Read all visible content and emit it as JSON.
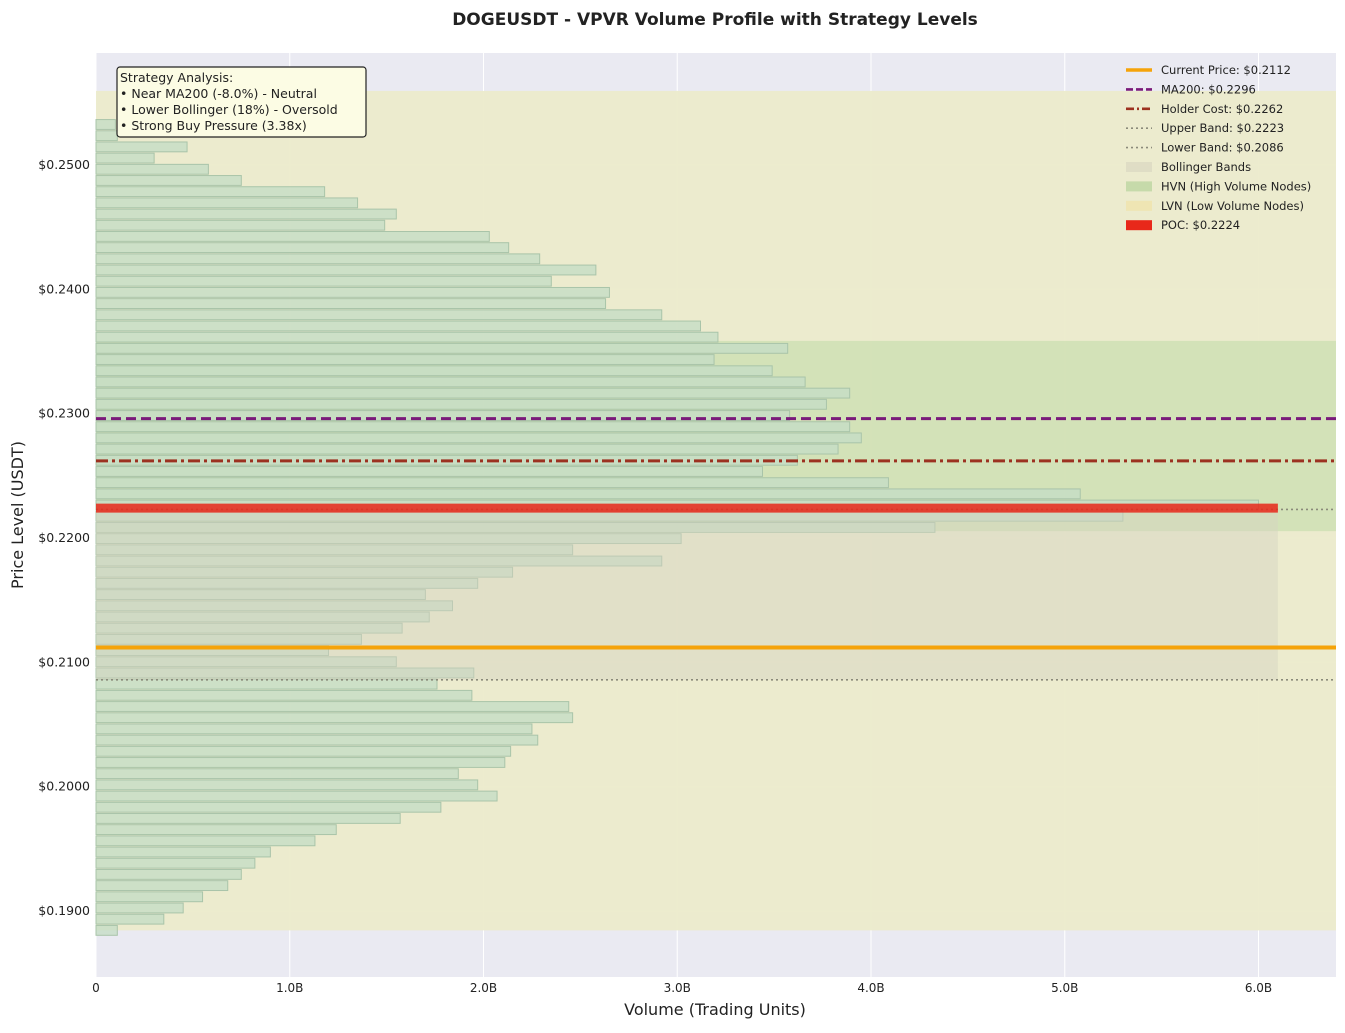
{
  "chart_data": {
    "type": "bar",
    "orientation": "horizontal",
    "title": "DOGEUSDT - VPVR Volume Profile with Strategy Levels",
    "xlabel": "Volume (Trading Units)",
    "ylabel": "Price Level (USDT)",
    "xlim": [
      0,
      6.4
    ],
    "ylim": [
      0.1847,
      0.259
    ],
    "x_unit": "B (billions)",
    "grid": true,
    "legend_position": "top-right",
    "xticks": [
      {
        "value": 0,
        "label": "0"
      },
      {
        "value": 1,
        "label": "1.0B"
      },
      {
        "value": 2,
        "label": "2.0B"
      },
      {
        "value": 3,
        "label": "3.0B"
      },
      {
        "value": 4,
        "label": "4.0B"
      },
      {
        "value": 5,
        "label": "5.0B"
      },
      {
        "value": 6,
        "label": "6.0B"
      }
    ],
    "yticks": [
      {
        "value": 0.19,
        "label": "$0.1900"
      },
      {
        "value": 0.2,
        "label": "$0.2000"
      },
      {
        "value": 0.21,
        "label": "$0.2100"
      },
      {
        "value": 0.22,
        "label": "$0.2200"
      },
      {
        "value": 0.23,
        "label": "$0.2300"
      },
      {
        "value": 0.24,
        "label": "$0.2400"
      },
      {
        "value": 0.25,
        "label": "$0.2500"
      }
    ],
    "profile": {
      "price_start": 0.18845,
      "price_step": 0.0009,
      "volumes": [
        0.11,
        0.35,
        0.45,
        0.55,
        0.68,
        0.75,
        0.82,
        0.9,
        1.13,
        1.24,
        1.57,
        1.78,
        2.07,
        1.97,
        1.87,
        2.11,
        2.14,
        2.28,
        2.25,
        2.46,
        2.44,
        1.94,
        1.76,
        1.95,
        1.55,
        1.2,
        1.37,
        1.58,
        1.72,
        1.84,
        1.7,
        1.97,
        2.15,
        2.92,
        2.46,
        3.02,
        4.33,
        5.3,
        6.0,
        5.08,
        4.09,
        3.44,
        3.62,
        3.83,
        3.95,
        3.89,
        3.58,
        3.77,
        3.89,
        3.66,
        3.49,
        3.19,
        3.57,
        3.21,
        3.12,
        2.92,
        2.63,
        2.65,
        2.35,
        2.58,
        2.29,
        2.13,
        2.03,
        1.49,
        1.55,
        1.35,
        1.18,
        0.75,
        0.58,
        0.3,
        0.47,
        0.11,
        0.1
      ],
      "hvn_range": [
        0.22055,
        0.23585
      ],
      "lvn_range": [
        0.18845,
        0.25595
      ]
    },
    "bollinger_bands": {
      "upper": 0.2223,
      "lower": 0.2086,
      "x_extent": 6.1
    },
    "levels": [
      {
        "key": "current",
        "label": "Current Price: $0.2112",
        "value": 0.2112,
        "color": "#f5a30a"
      },
      {
        "key": "ma200",
        "label": "MA200: $0.2296",
        "value": 0.2296,
        "color": "#7a1a7a"
      },
      {
        "key": "holder",
        "label": "Holder Cost: $0.2262",
        "value": 0.2262,
        "color": "#9c3120"
      },
      {
        "key": "upper",
        "label": "Upper Band: $0.2223",
        "value": 0.2223,
        "color": "#8a8a7a"
      },
      {
        "key": "lower",
        "label": "Lower Band: $0.2086",
        "value": 0.2086,
        "color": "#8a8a7a"
      },
      {
        "key": "poc",
        "label": "POC: $0.2224",
        "value": 0.2224,
        "color": "#e8281a",
        "x_extent": 6.1
      }
    ],
    "legend": [
      {
        "label": "Current Price: $0.2112",
        "style": "line-solid",
        "color": "#f5a30a"
      },
      {
        "label": "MA200: $0.2296",
        "style": "line-dashed",
        "color": "#7a1a7a"
      },
      {
        "label": "Holder Cost: $0.2262",
        "style": "line-dashdot",
        "color": "#9c3120"
      },
      {
        "label": "Upper Band: $0.2223",
        "style": "line-dotted",
        "color": "#8a8a7a"
      },
      {
        "label": "Lower Band: $0.2086",
        "style": "line-dotted",
        "color": "#8a8a7a"
      },
      {
        "label": "Bollinger Bands",
        "style": "patch",
        "color": "#dedcc4"
      },
      {
        "label": "HVN (High Volume Nodes)",
        "style": "patch",
        "color": "#c2d8a6"
      },
      {
        "label": "LVN (Low Volume Nodes)",
        "style": "patch",
        "color": "#f0e4b0"
      },
      {
        "label": "POC: $0.2224",
        "style": "patch",
        "color": "#e8281a"
      }
    ],
    "annotation": {
      "lines": [
        "Strategy Analysis:",
        "• Near MA200 (-8.0%) - Neutral",
        "• Lower Bollinger (18%) - Oversold",
        "• Strong Buy Pressure (3.38x)"
      ]
    },
    "colors": {
      "background": "#eaeaf2",
      "bar_fill": "#c6ddc6",
      "bar_edge": "#a9c4a9",
      "lvn": "#ecebcb",
      "hvn": "#cfe0b4"
    }
  }
}
